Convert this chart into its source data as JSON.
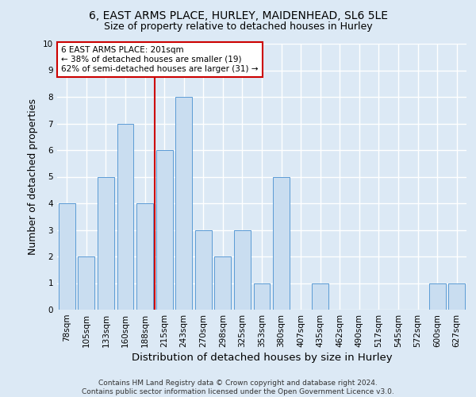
{
  "title_line1": "6, EAST ARMS PLACE, HURLEY, MAIDENHEAD, SL6 5LE",
  "title_line2": "Size of property relative to detached houses in Hurley",
  "xlabel": "Distribution of detached houses by size in Hurley",
  "ylabel": "Number of detached properties",
  "categories": [
    "78sqm",
    "105sqm",
    "133sqm",
    "160sqm",
    "188sqm",
    "215sqm",
    "243sqm",
    "270sqm",
    "298sqm",
    "325sqm",
    "353sqm",
    "380sqm",
    "407sqm",
    "435sqm",
    "462sqm",
    "490sqm",
    "517sqm",
    "545sqm",
    "572sqm",
    "600sqm",
    "627sqm"
  ],
  "values": [
    4,
    2,
    5,
    7,
    4,
    6,
    8,
    3,
    2,
    3,
    1,
    5,
    0,
    1,
    0,
    0,
    0,
    0,
    0,
    1,
    1
  ],
  "bar_color": "#c9ddf0",
  "bar_edge_color": "#5b9bd5",
  "highlight_line_index": 4,
  "highlight_line_color": "#cc0000",
  "annotation_text": "6 EAST ARMS PLACE: 201sqm\n← 38% of detached houses are smaller (19)\n62% of semi-detached houses are larger (31) →",
  "annotation_box_color": "#ffffff",
  "annotation_box_edge_color": "#cc0000",
  "ylim": [
    0,
    10
  ],
  "yticks": [
    0,
    1,
    2,
    3,
    4,
    5,
    6,
    7,
    8,
    9,
    10
  ],
  "footer": "Contains HM Land Registry data © Crown copyright and database right 2024.\nContains public sector information licensed under the Open Government Licence v3.0.",
  "background_color": "#dce9f5",
  "plot_background_color": "#dce9f5",
  "grid_color": "#ffffff",
  "title_fontsize": 10,
  "subtitle_fontsize": 9,
  "axis_label_fontsize": 9,
  "tick_fontsize": 7.5,
  "footer_fontsize": 6.5
}
